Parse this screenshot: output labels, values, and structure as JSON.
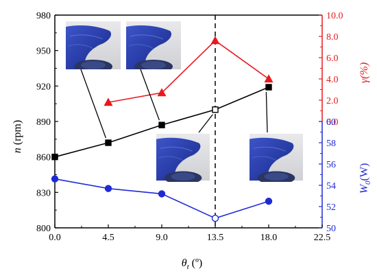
{
  "chart_data": {
    "type": "line",
    "xlabel_symbol": "θ",
    "xlabel_sub": "t",
    "xlabel_unit": " (º)",
    "ylabel_left_var": "n",
    "ylabel_left_unit": " (rpm)",
    "ylabel_right_top": "γ(%)",
    "ylabel_right_bottom_var": "W",
    "ylabel_right_bottom_sub": "0",
    "ylabel_right_bottom_unit": "(W)",
    "xlim": [
      0,
      22.5
    ],
    "x_ticks": [
      "0.0",
      "4.5",
      "9.0",
      "13.5",
      "18.0",
      "22.5"
    ],
    "y_left_lim": [
      800,
      980
    ],
    "y_left_ticks": [
      "800",
      "830",
      "860",
      "890",
      "920",
      "950",
      "980"
    ],
    "y_right_top_lim": [
      0,
      10
    ],
    "y_right_top_ticks": [
      "0.0",
      "2.0",
      "4.0",
      "6.0",
      "8.0",
      "10.0"
    ],
    "y_right_bottom_lim": [
      50,
      60
    ],
    "y_right_bottom_ticks": [
      "50",
      "52",
      "54",
      "56",
      "58",
      "60"
    ],
    "vertical_marker_x": 13.5,
    "series": [
      {
        "axis": "left",
        "color": "#000000",
        "marker": "square",
        "highlight_x": 13.5,
        "x": [
          0,
          4.5,
          9.0,
          13.5,
          18.0
        ],
        "values": [
          860,
          872,
          887,
          900,
          919
        ]
      },
      {
        "axis": "right-top",
        "color": "#e8191e",
        "marker": "triangle",
        "x": [
          4.5,
          9.0,
          13.5,
          18.0
        ],
        "values": [
          1.8,
          2.7,
          7.6,
          4.0
        ]
      },
      {
        "axis": "right-bottom",
        "color": "#1f2ad6",
        "marker": "circle",
        "highlight_x": 13.5,
        "x": [
          0,
          4.5,
          9.0,
          13.5,
          18.0
        ],
        "values": [
          54.6,
          53.7,
          53.2,
          50.9,
          52.5
        ]
      }
    ],
    "insets": [
      {
        "name": "inset-photo-4-5",
        "points_to_x": 4.5,
        "points_to_series": "left"
      },
      {
        "name": "inset-photo-9-0",
        "points_to_x": 9.0,
        "points_to_series": "left"
      },
      {
        "name": "inset-photo-13-5",
        "points_to_x": 13.5,
        "points_to_series": "left"
      },
      {
        "name": "inset-photo-18-0",
        "points_to_x": 18.0,
        "points_to_series": "left"
      }
    ]
  }
}
